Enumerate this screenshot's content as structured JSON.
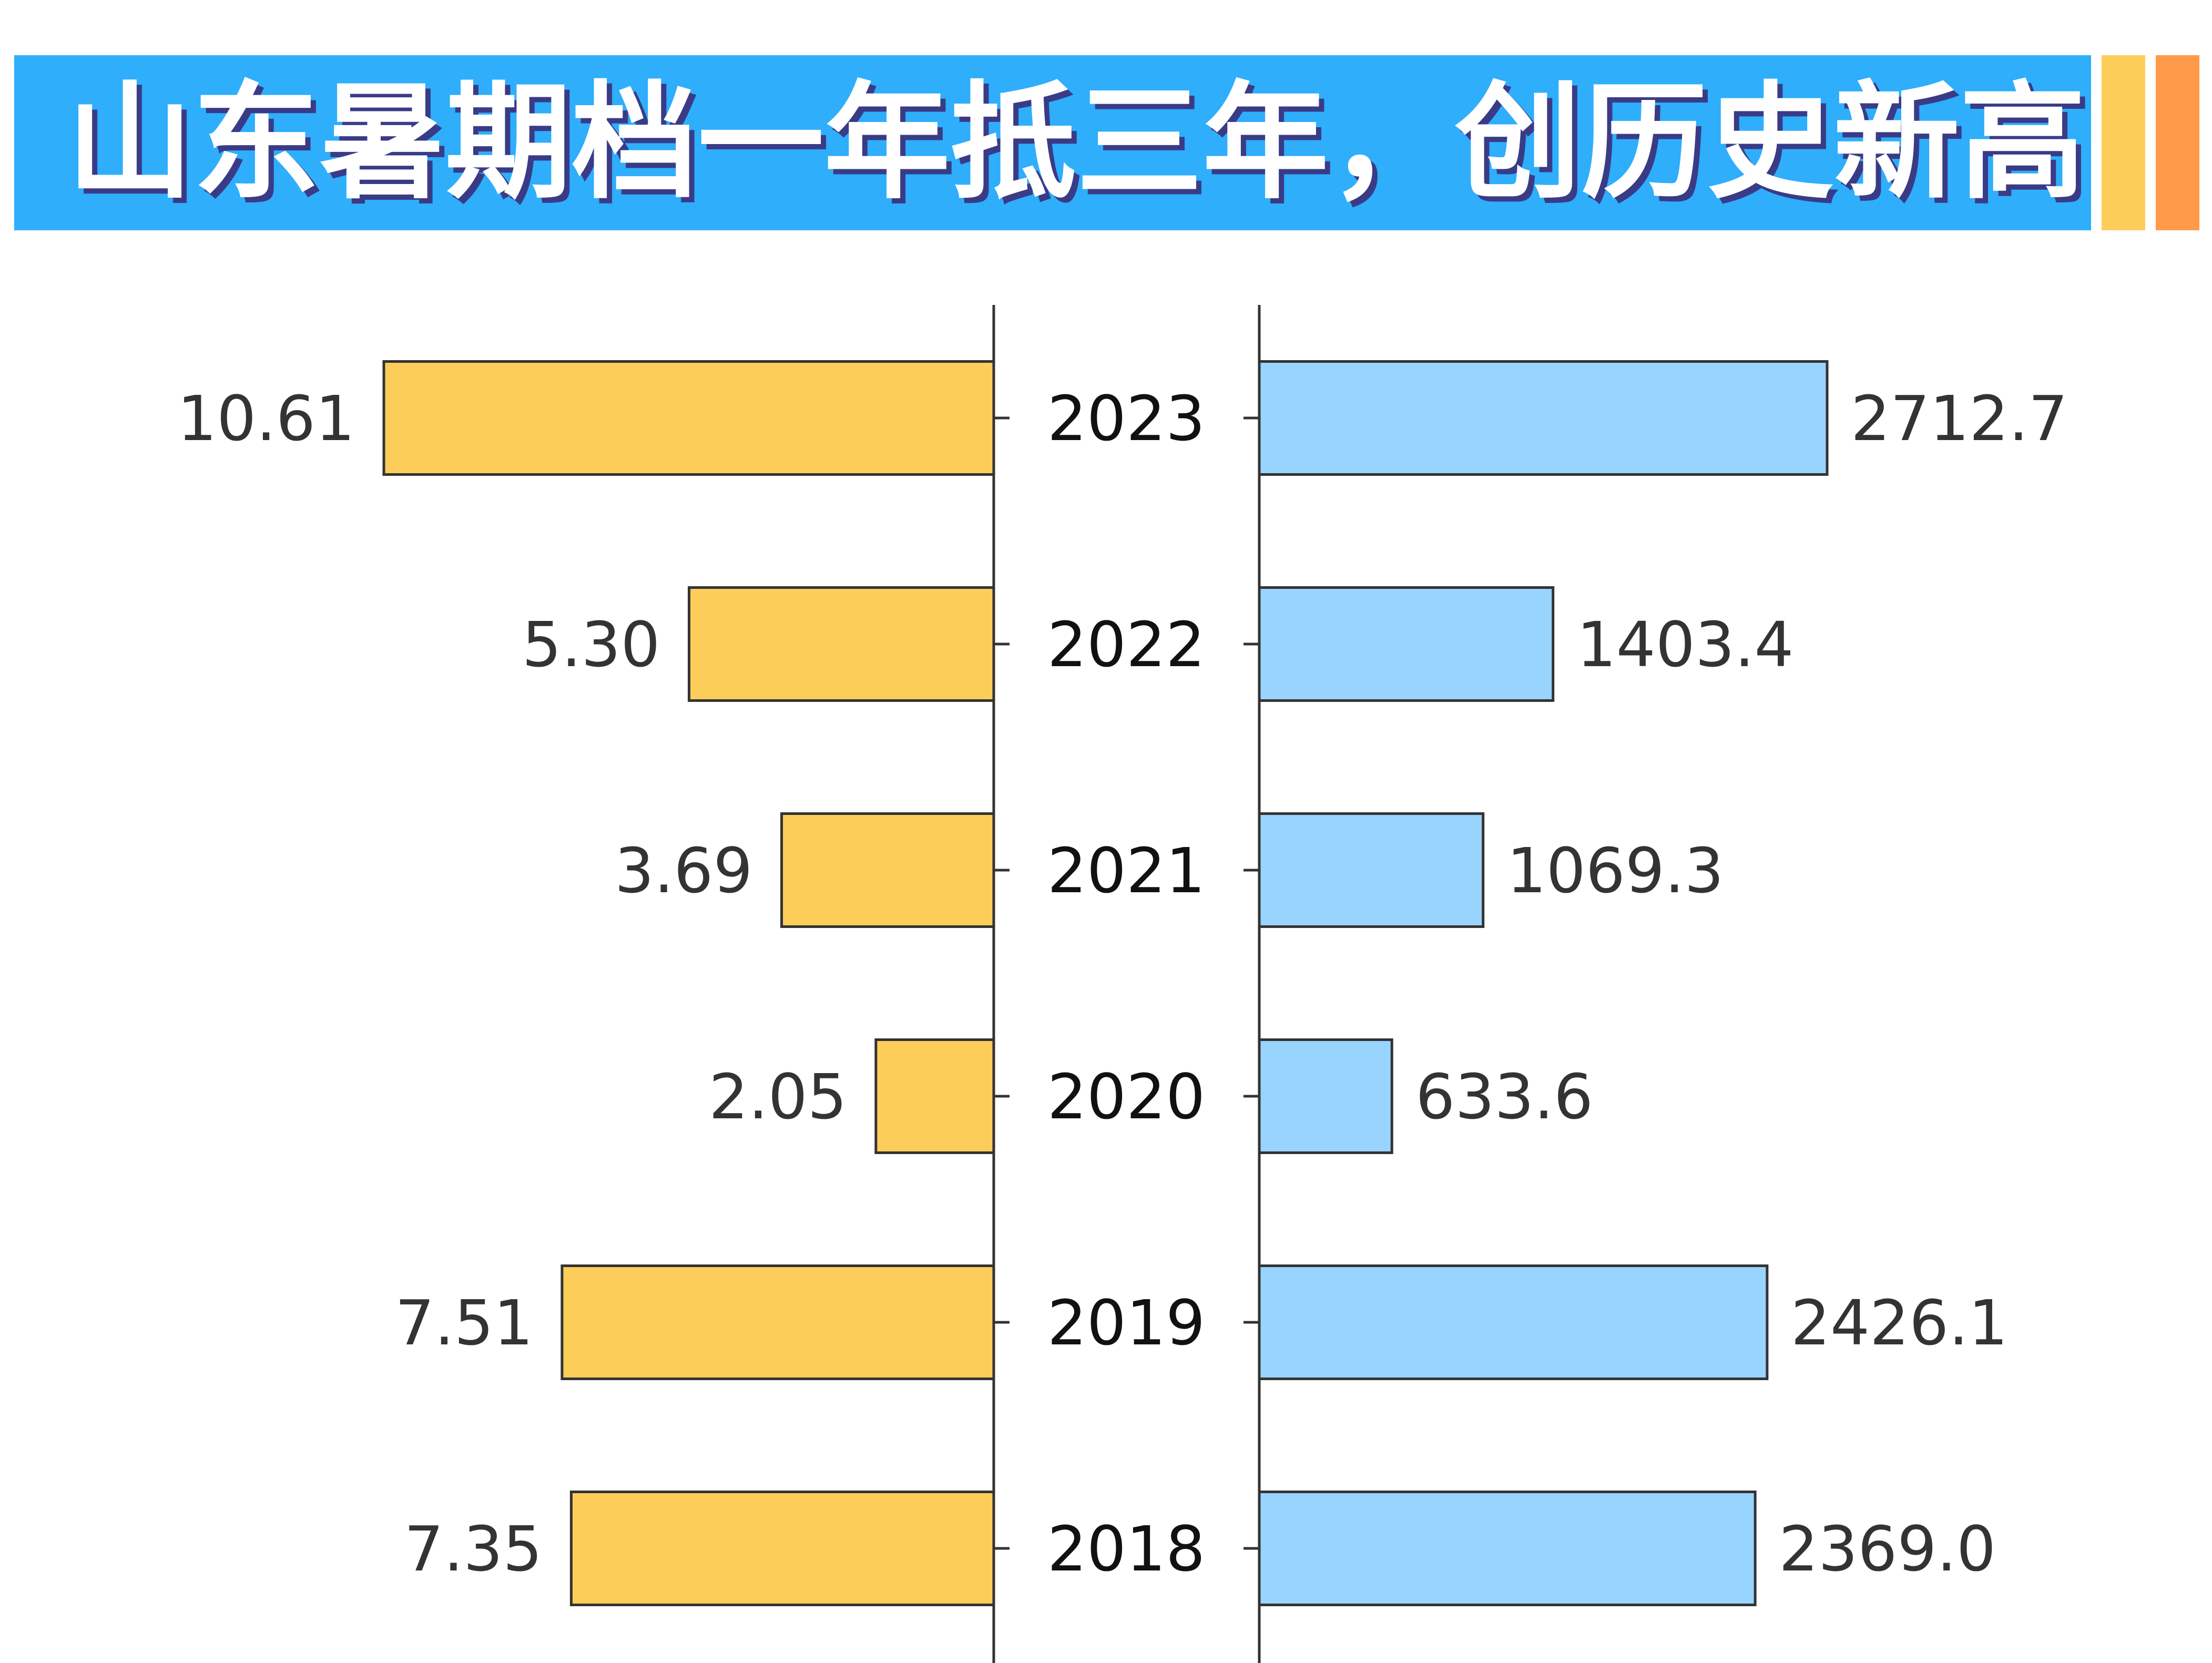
{
  "title": "山东暑期档一年抵三年，创历史新高",
  "colors": {
    "title_bg": "#2eaefb",
    "title_shadow": "#3a3b87",
    "accent_yellow": "#fdcd5a",
    "accent_orange": "#ff9a4a",
    "left_bar": "#fdcd5a",
    "right_bar": "#99d4ff",
    "bar_stroke": "#333333",
    "axis": "#333333"
  },
  "chart_data": {
    "type": "bar",
    "orientation": "horizontal-butterfly",
    "categories": [
      "2023",
      "2022",
      "2021",
      "2020",
      "2019",
      "2018"
    ],
    "series": [
      {
        "side": "left",
        "values": [
          10.61,
          5.3,
          3.69,
          2.05,
          7.51,
          7.35
        ],
        "labels": [
          "10.61",
          "5.30",
          "3.69",
          "2.05",
          "7.51",
          "7.35"
        ]
      },
      {
        "side": "right",
        "values": [
          2712.7,
          1403.4,
          1069.3,
          633.6,
          2426.1,
          2369.0
        ],
        "labels": [
          "2712.7",
          "1403.4",
          "1069.3",
          "633.6",
          "2426.1",
          "2369.0"
        ]
      }
    ],
    "grid": false,
    "legend": "none"
  }
}
